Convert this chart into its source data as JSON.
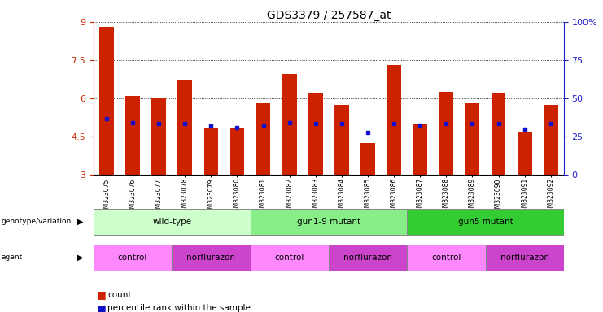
{
  "title": "GDS3379 / 257587_at",
  "samples": [
    "GSM323075",
    "GSM323076",
    "GSM323077",
    "GSM323078",
    "GSM323079",
    "GSM323080",
    "GSM323081",
    "GSM323082",
    "GSM323083",
    "GSM323084",
    "GSM323085",
    "GSM323086",
    "GSM323087",
    "GSM323088",
    "GSM323089",
    "GSM323090",
    "GSM323091",
    "GSM323092"
  ],
  "count_values": [
    8.8,
    6.1,
    6.0,
    6.7,
    4.85,
    4.85,
    5.8,
    6.95,
    6.2,
    5.75,
    4.25,
    7.3,
    5.0,
    6.25,
    5.8,
    6.2,
    4.7,
    5.75
  ],
  "percentile_dots_y": [
    5.2,
    5.05,
    5.0,
    5.0,
    4.9,
    4.85,
    4.95,
    5.05,
    5.0,
    5.0,
    4.65,
    5.0,
    4.95,
    5.0,
    5.0,
    5.0,
    4.8,
    5.0
  ],
  "ylim": [
    3,
    9
  ],
  "yticks": [
    3,
    4.5,
    6,
    7.5,
    9
  ],
  "ytick_labels": [
    "3",
    "4.5",
    "6",
    "7.5",
    "9"
  ],
  "y2ticks": [
    0,
    25,
    50,
    75,
    100
  ],
  "y2tick_labels": [
    "0",
    "25",
    "50",
    "75",
    "100%"
  ],
  "bar_color": "#cc2200",
  "dot_color": "#1111cc",
  "bar_width": 0.55,
  "genotype_groups": [
    {
      "label": "wild-type",
      "start": 0,
      "end": 5,
      "color": "#ccffcc"
    },
    {
      "label": "gun1-9 mutant",
      "start": 6,
      "end": 11,
      "color": "#88ee88"
    },
    {
      "label": "gun5 mutant",
      "start": 12,
      "end": 17,
      "color": "#33cc33"
    }
  ],
  "agent_groups": [
    {
      "label": "control",
      "start": 0,
      "end": 2,
      "color": "#ff88ff"
    },
    {
      "label": "norflurazon",
      "start": 3,
      "end": 5,
      "color": "#cc44cc"
    },
    {
      "label": "control",
      "start": 6,
      "end": 8,
      "color": "#ff88ff"
    },
    {
      "label": "norflurazon",
      "start": 9,
      "end": 11,
      "color": "#cc44cc"
    },
    {
      "label": "control",
      "start": 12,
      "end": 14,
      "color": "#ff88ff"
    },
    {
      "label": "norflurazon",
      "start": 15,
      "end": 17,
      "color": "#cc44cc"
    }
  ],
  "y_label_color": "#cc2200",
  "y2_label_color": "#2222cc",
  "background_color": "#ffffff"
}
